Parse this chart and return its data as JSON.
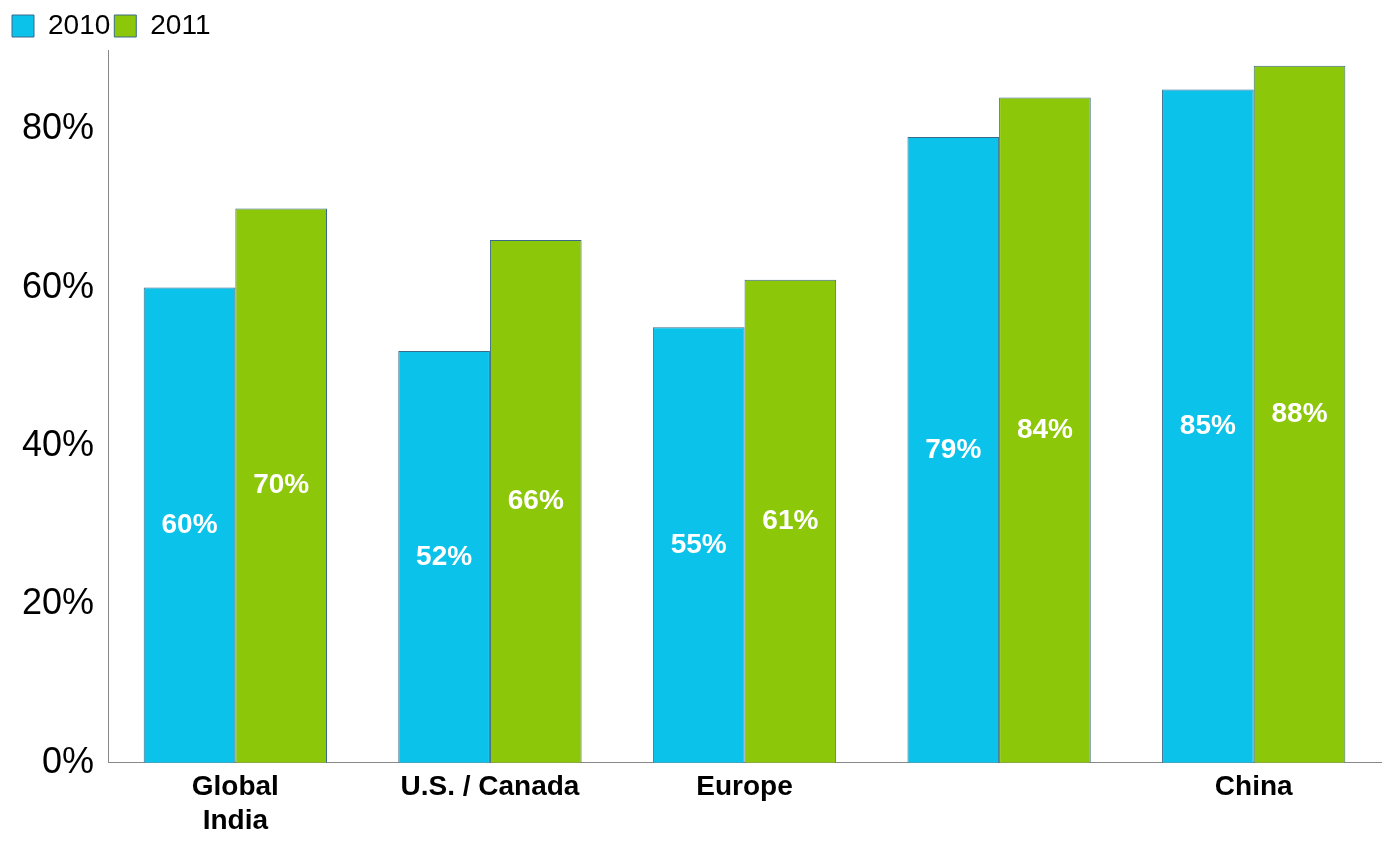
{
  "chart_data": {
    "type": "bar",
    "categories": [
      "Global\nIndia",
      "U.S. / Canada",
      "Europe",
      null,
      "China"
    ],
    "series": [
      {
        "name": "2010",
        "color": "#0ac2ea",
        "values": [
          60,
          52,
          55,
          79,
          85
        ],
        "value_labels": [
          "60%",
          "52%",
          "55%",
          "79%",
          "85%"
        ]
      },
      {
        "name": "2011",
        "color": "#8cc709",
        "values": [
          70,
          66,
          61,
          84,
          88
        ],
        "value_labels": [
          "70%",
          "66%",
          "61%",
          "84%",
          "88%"
        ]
      }
    ],
    "ylim": [
      0,
      90
    ],
    "yticks": [
      {
        "value": 0,
        "label": "0%"
      },
      {
        "value": 20,
        "label": "20%"
      },
      {
        "value": 40,
        "label": "40%"
      },
      {
        "value": 60,
        "label": "60%"
      },
      {
        "value": 80,
        "label": "80%"
      }
    ],
    "grid": false,
    "legend": "top left"
  }
}
